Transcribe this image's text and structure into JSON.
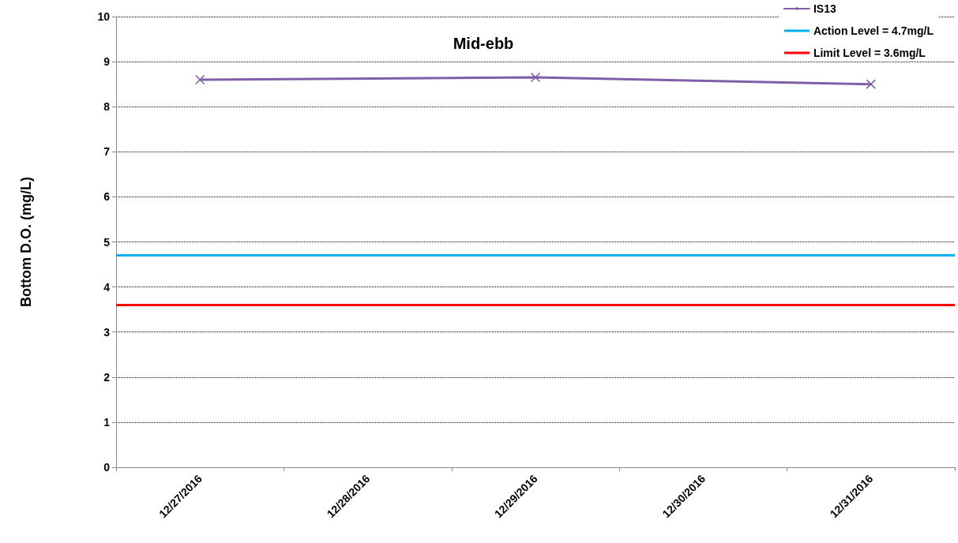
{
  "chart_data": {
    "type": "line",
    "title": "Mid-ebb",
    "ylabel": "Bottom D.O. (mg/L)",
    "categories": [
      "12/27/2016",
      "12/28/2016",
      "12/29/2016",
      "12/30/2016",
      "12/31/2016"
    ],
    "series": [
      {
        "name": "IS13",
        "color": "#7f60a8",
        "values": [
          8.6,
          null,
          8.65,
          null,
          8.5
        ]
      }
    ],
    "ref_lines": [
      {
        "axis": "y",
        "value": 4.7,
        "label": "Action Level = 4.7mg/L",
        "color": "#00b0f0"
      },
      {
        "axis": "y",
        "value": 3.6,
        "label": "Limit Level = 3.6mg/L",
        "color": "#ff0000"
      }
    ],
    "ylim": [
      0,
      10
    ],
    "yticks": [
      0,
      1,
      2,
      3,
      4,
      5,
      6,
      7,
      8,
      9,
      10
    ],
    "grid": "y",
    "legend": "top right",
    "marker": "cross",
    "line_style": "solid"
  }
}
